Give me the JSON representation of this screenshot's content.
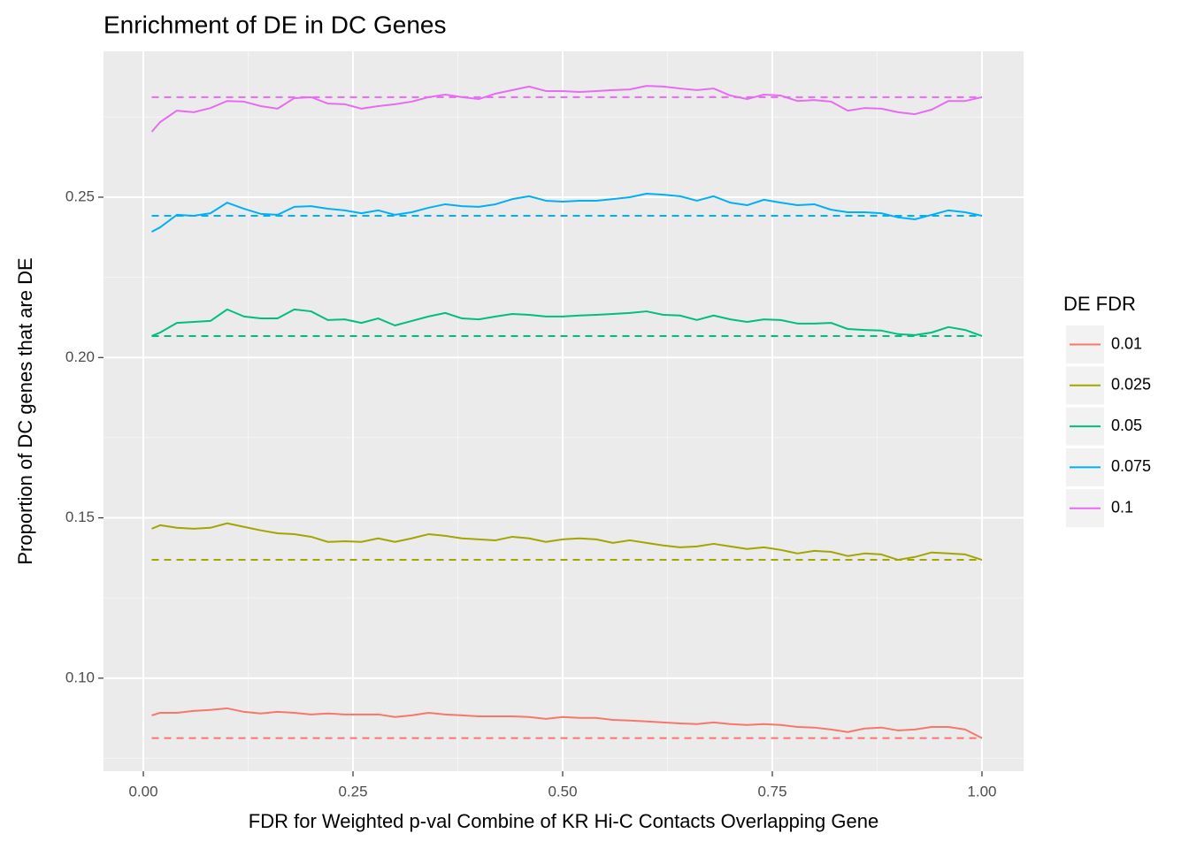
{
  "chart_data": {
    "type": "line",
    "title": "Enrichment of DE in DC Genes",
    "x_label": "FDR for Weighted p-val Combine of KR Hi-C Contacts Overlapping Gene",
    "y_label": "Proportion of DC genes that are DE",
    "legend_title": "DE FDR",
    "legend_position": "right",
    "grid": true,
    "xlim": [
      -0.0475,
      1.0496
    ],
    "ylim": [
      0.071,
      0.2955
    ],
    "xticks": [
      {
        "value": 0,
        "label": "0.00"
      },
      0.25,
      {
        "value": 0.5,
        "label": "0.50"
      },
      0.75,
      {
        "value": 1,
        "label": "1.00"
      }
    ],
    "yticks": [
      {
        "value": 0.1,
        "label": "0.10"
      },
      0.15,
      {
        "value": 0.2,
        "label": "0.20"
      },
      0.25
    ],
    "x": [
      0.01,
      0.02,
      0.04,
      0.06,
      0.08,
      0.1,
      0.12,
      0.14,
      0.16,
      0.18,
      0.2,
      0.22,
      0.24,
      0.26,
      0.28,
      0.3,
      0.32,
      0.34,
      0.36,
      0.38,
      0.4,
      0.42,
      0.44,
      0.46,
      0.48,
      0.5,
      0.52,
      0.54,
      0.56,
      0.58,
      0.6,
      0.62,
      0.64,
      0.66,
      0.68,
      0.7,
      0.72,
      0.74,
      0.76,
      0.78,
      0.8,
      0.82,
      0.84,
      0.86,
      0.88,
      0.9,
      0.92,
      0.94,
      0.96,
      0.98,
      1.0
    ],
    "series": [
      {
        "name": "0.01",
        "color": "#F8766D",
        "reference": 0.0813,
        "values": [
          0.0884,
          0.0892,
          0.0892,
          0.0898,
          0.0901,
          0.0906,
          0.0895,
          0.089,
          0.0895,
          0.0892,
          0.0887,
          0.089,
          0.0887,
          0.0887,
          0.0887,
          0.0879,
          0.0884,
          0.0892,
          0.0887,
          0.0884,
          0.0881,
          0.0881,
          0.0881,
          0.0879,
          0.0873,
          0.0879,
          0.0876,
          0.0876,
          0.087,
          0.0868,
          0.0865,
          0.0862,
          0.0859,
          0.0857,
          0.0862,
          0.0857,
          0.0854,
          0.0857,
          0.0854,
          0.0848,
          0.0846,
          0.084,
          0.0832,
          0.0843,
          0.0846,
          0.0837,
          0.084,
          0.0848,
          0.0848,
          0.084,
          0.0813
        ]
      },
      {
        "name": "0.025",
        "color": "#A3A500",
        "reference": 0.1369,
        "values": [
          0.1466,
          0.1477,
          0.1469,
          0.1466,
          0.1469,
          0.1483,
          0.1472,
          0.1461,
          0.1452,
          0.1449,
          0.1441,
          0.1425,
          0.1427,
          0.1425,
          0.1436,
          0.1425,
          0.1436,
          0.1449,
          0.1444,
          0.1436,
          0.1433,
          0.143,
          0.1441,
          0.1436,
          0.1425,
          0.1433,
          0.1436,
          0.1433,
          0.1422,
          0.143,
          0.1422,
          0.1414,
          0.1408,
          0.1411,
          0.1419,
          0.1411,
          0.1403,
          0.1408,
          0.14,
          0.1389,
          0.1397,
          0.1394,
          0.1381,
          0.1389,
          0.1386,
          0.1369,
          0.1378,
          0.1392,
          0.1389,
          0.1386,
          0.1369
        ]
      },
      {
        "name": "0.05",
        "color": "#00BF7D",
        "reference": 0.2067,
        "values": [
          0.2067,
          0.2078,
          0.2108,
          0.2111,
          0.2114,
          0.215,
          0.2128,
          0.2122,
          0.2122,
          0.215,
          0.2144,
          0.2117,
          0.2119,
          0.2108,
          0.2122,
          0.21,
          0.2114,
          0.2128,
          0.2139,
          0.2122,
          0.2119,
          0.2128,
          0.2136,
          0.2133,
          0.2128,
          0.2128,
          0.2131,
          0.2133,
          0.2136,
          0.2139,
          0.2144,
          0.2133,
          0.2131,
          0.2117,
          0.2131,
          0.2119,
          0.2111,
          0.2119,
          0.2117,
          0.2106,
          0.2106,
          0.2108,
          0.2089,
          0.2086,
          0.2084,
          0.2073,
          0.207,
          0.2078,
          0.2095,
          0.2086,
          0.2067
        ]
      },
      {
        "name": "0.075",
        "color": "#00B0F6",
        "reference": 0.2442,
        "values": [
          0.2392,
          0.2406,
          0.2445,
          0.2442,
          0.245,
          0.2483,
          0.2464,
          0.2448,
          0.2445,
          0.247,
          0.2472,
          0.2464,
          0.2459,
          0.245,
          0.2459,
          0.2445,
          0.2453,
          0.2467,
          0.2478,
          0.2472,
          0.247,
          0.2478,
          0.2494,
          0.2503,
          0.2489,
          0.2486,
          0.2489,
          0.2489,
          0.2494,
          0.25,
          0.2511,
          0.2508,
          0.2503,
          0.2489,
          0.2503,
          0.2483,
          0.2475,
          0.2492,
          0.2483,
          0.2475,
          0.2478,
          0.2461,
          0.2453,
          0.2453,
          0.245,
          0.2437,
          0.2431,
          0.2445,
          0.2459,
          0.2453,
          0.2442
        ]
      },
      {
        "name": "0.1",
        "color": "#E76BF3",
        "reference": 0.2812,
        "values": [
          0.2704,
          0.2734,
          0.277,
          0.2765,
          0.2778,
          0.28,
          0.2798,
          0.2784,
          0.2776,
          0.2809,
          0.2812,
          0.2792,
          0.279,
          0.2776,
          0.2784,
          0.279,
          0.2798,
          0.2812,
          0.282,
          0.2812,
          0.2806,
          0.2823,
          0.2834,
          0.2845,
          0.2831,
          0.2831,
          0.2828,
          0.2831,
          0.2834,
          0.2836,
          0.2847,
          0.2845,
          0.2839,
          0.2834,
          0.2839,
          0.2817,
          0.2806,
          0.282,
          0.2817,
          0.28,
          0.2803,
          0.2798,
          0.277,
          0.2778,
          0.2776,
          0.2765,
          0.2759,
          0.2773,
          0.28,
          0.28,
          0.2812
        ]
      }
    ]
  }
}
